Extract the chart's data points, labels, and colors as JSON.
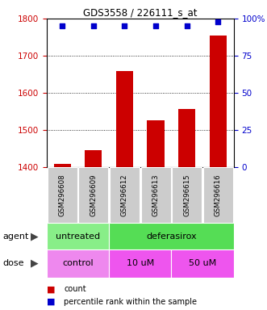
{
  "title": "GDS3558 / 226111_s_at",
  "samples": [
    "GSM296608",
    "GSM296609",
    "GSM296612",
    "GSM296613",
    "GSM296615",
    "GSM296616"
  ],
  "count_values": [
    1410,
    1447,
    1660,
    1527,
    1558,
    1755
  ],
  "percentile_values": [
    95,
    95,
    95,
    95,
    95,
    98
  ],
  "ylim_left": [
    1400,
    1800
  ],
  "ylim_right": [
    0,
    100
  ],
  "yticks_left": [
    1400,
    1500,
    1600,
    1700,
    1800
  ],
  "yticks_right": [
    0,
    25,
    50,
    75,
    100
  ],
  "bar_color": "#cc0000",
  "dot_color": "#0000cc",
  "agent_groups": [
    {
      "label": "untreated",
      "start": 0,
      "end": 2,
      "color": "#88ee88"
    },
    {
      "label": "deferasirox",
      "start": 2,
      "end": 6,
      "color": "#55dd55"
    }
  ],
  "dose_groups": [
    {
      "label": "control",
      "start": 0,
      "end": 2,
      "color": "#ee88ee"
    },
    {
      "label": "10 uM",
      "start": 2,
      "end": 4,
      "color": "#ee55ee"
    },
    {
      "label": "50 uM",
      "start": 4,
      "end": 6,
      "color": "#ee55ee"
    }
  ],
  "legend_count_color": "#cc0000",
  "legend_dot_color": "#0000cc",
  "background_color": "#ffffff",
  "plot_bg_color": "#ffffff",
  "tick_label_color_left": "#cc0000",
  "tick_label_color_right": "#0000cc",
  "sample_bg_color": "#cccccc",
  "sample_text_color": "#000000"
}
